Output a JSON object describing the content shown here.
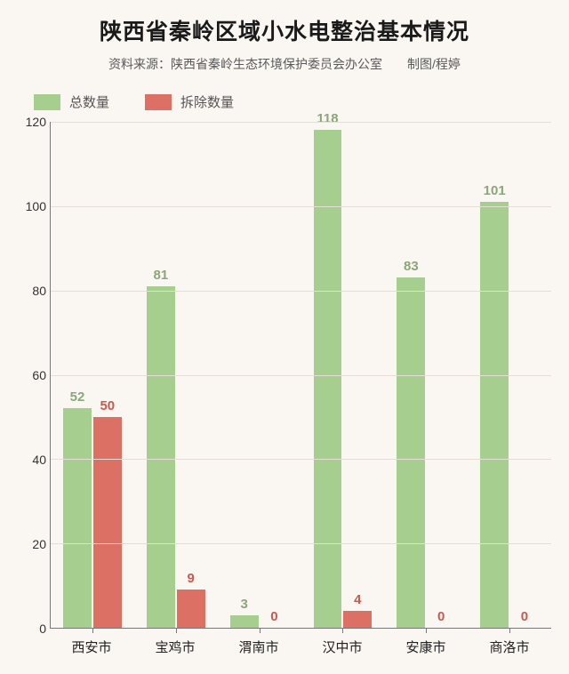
{
  "title": "陕西省秦岭区域小水电整治基本情况",
  "title_fontsize": 25,
  "source_label": "资料来源：陕西省秦岭生态环境保护委员会办公室",
  "credit_label": "制图/程婷",
  "source_fontsize": 14,
  "legend": {
    "series1": {
      "label": "总数量",
      "color": "#a6ce8f"
    },
    "series2": {
      "label": "拆除数量",
      "color": "#dd7064"
    }
  },
  "chart": {
    "type": "bar",
    "ylim": [
      0,
      120
    ],
    "ytick_step": 20,
    "yticks": [
      0,
      20,
      40,
      60,
      80,
      100,
      120
    ],
    "grid_color": "#e4ded6",
    "axis_color": "#777777",
    "background_color": "#faf6f1",
    "label_color_series1": "#8aa77a",
    "label_color_series2": "#c85a4f",
    "bar_width_pct": 34,
    "bar_gap_pct": 2,
    "categories": [
      "西安市",
      "宝鸡市",
      "渭南市",
      "汉中市",
      "安康市",
      "商洛市"
    ],
    "series": [
      {
        "name": "总数量",
        "color": "#a6ce8f",
        "values": [
          52,
          81,
          3,
          118,
          83,
          101
        ]
      },
      {
        "name": "拆除数量",
        "color": "#dd7064",
        "values": [
          50,
          9,
          0,
          4,
          0,
          0
        ]
      }
    ]
  }
}
